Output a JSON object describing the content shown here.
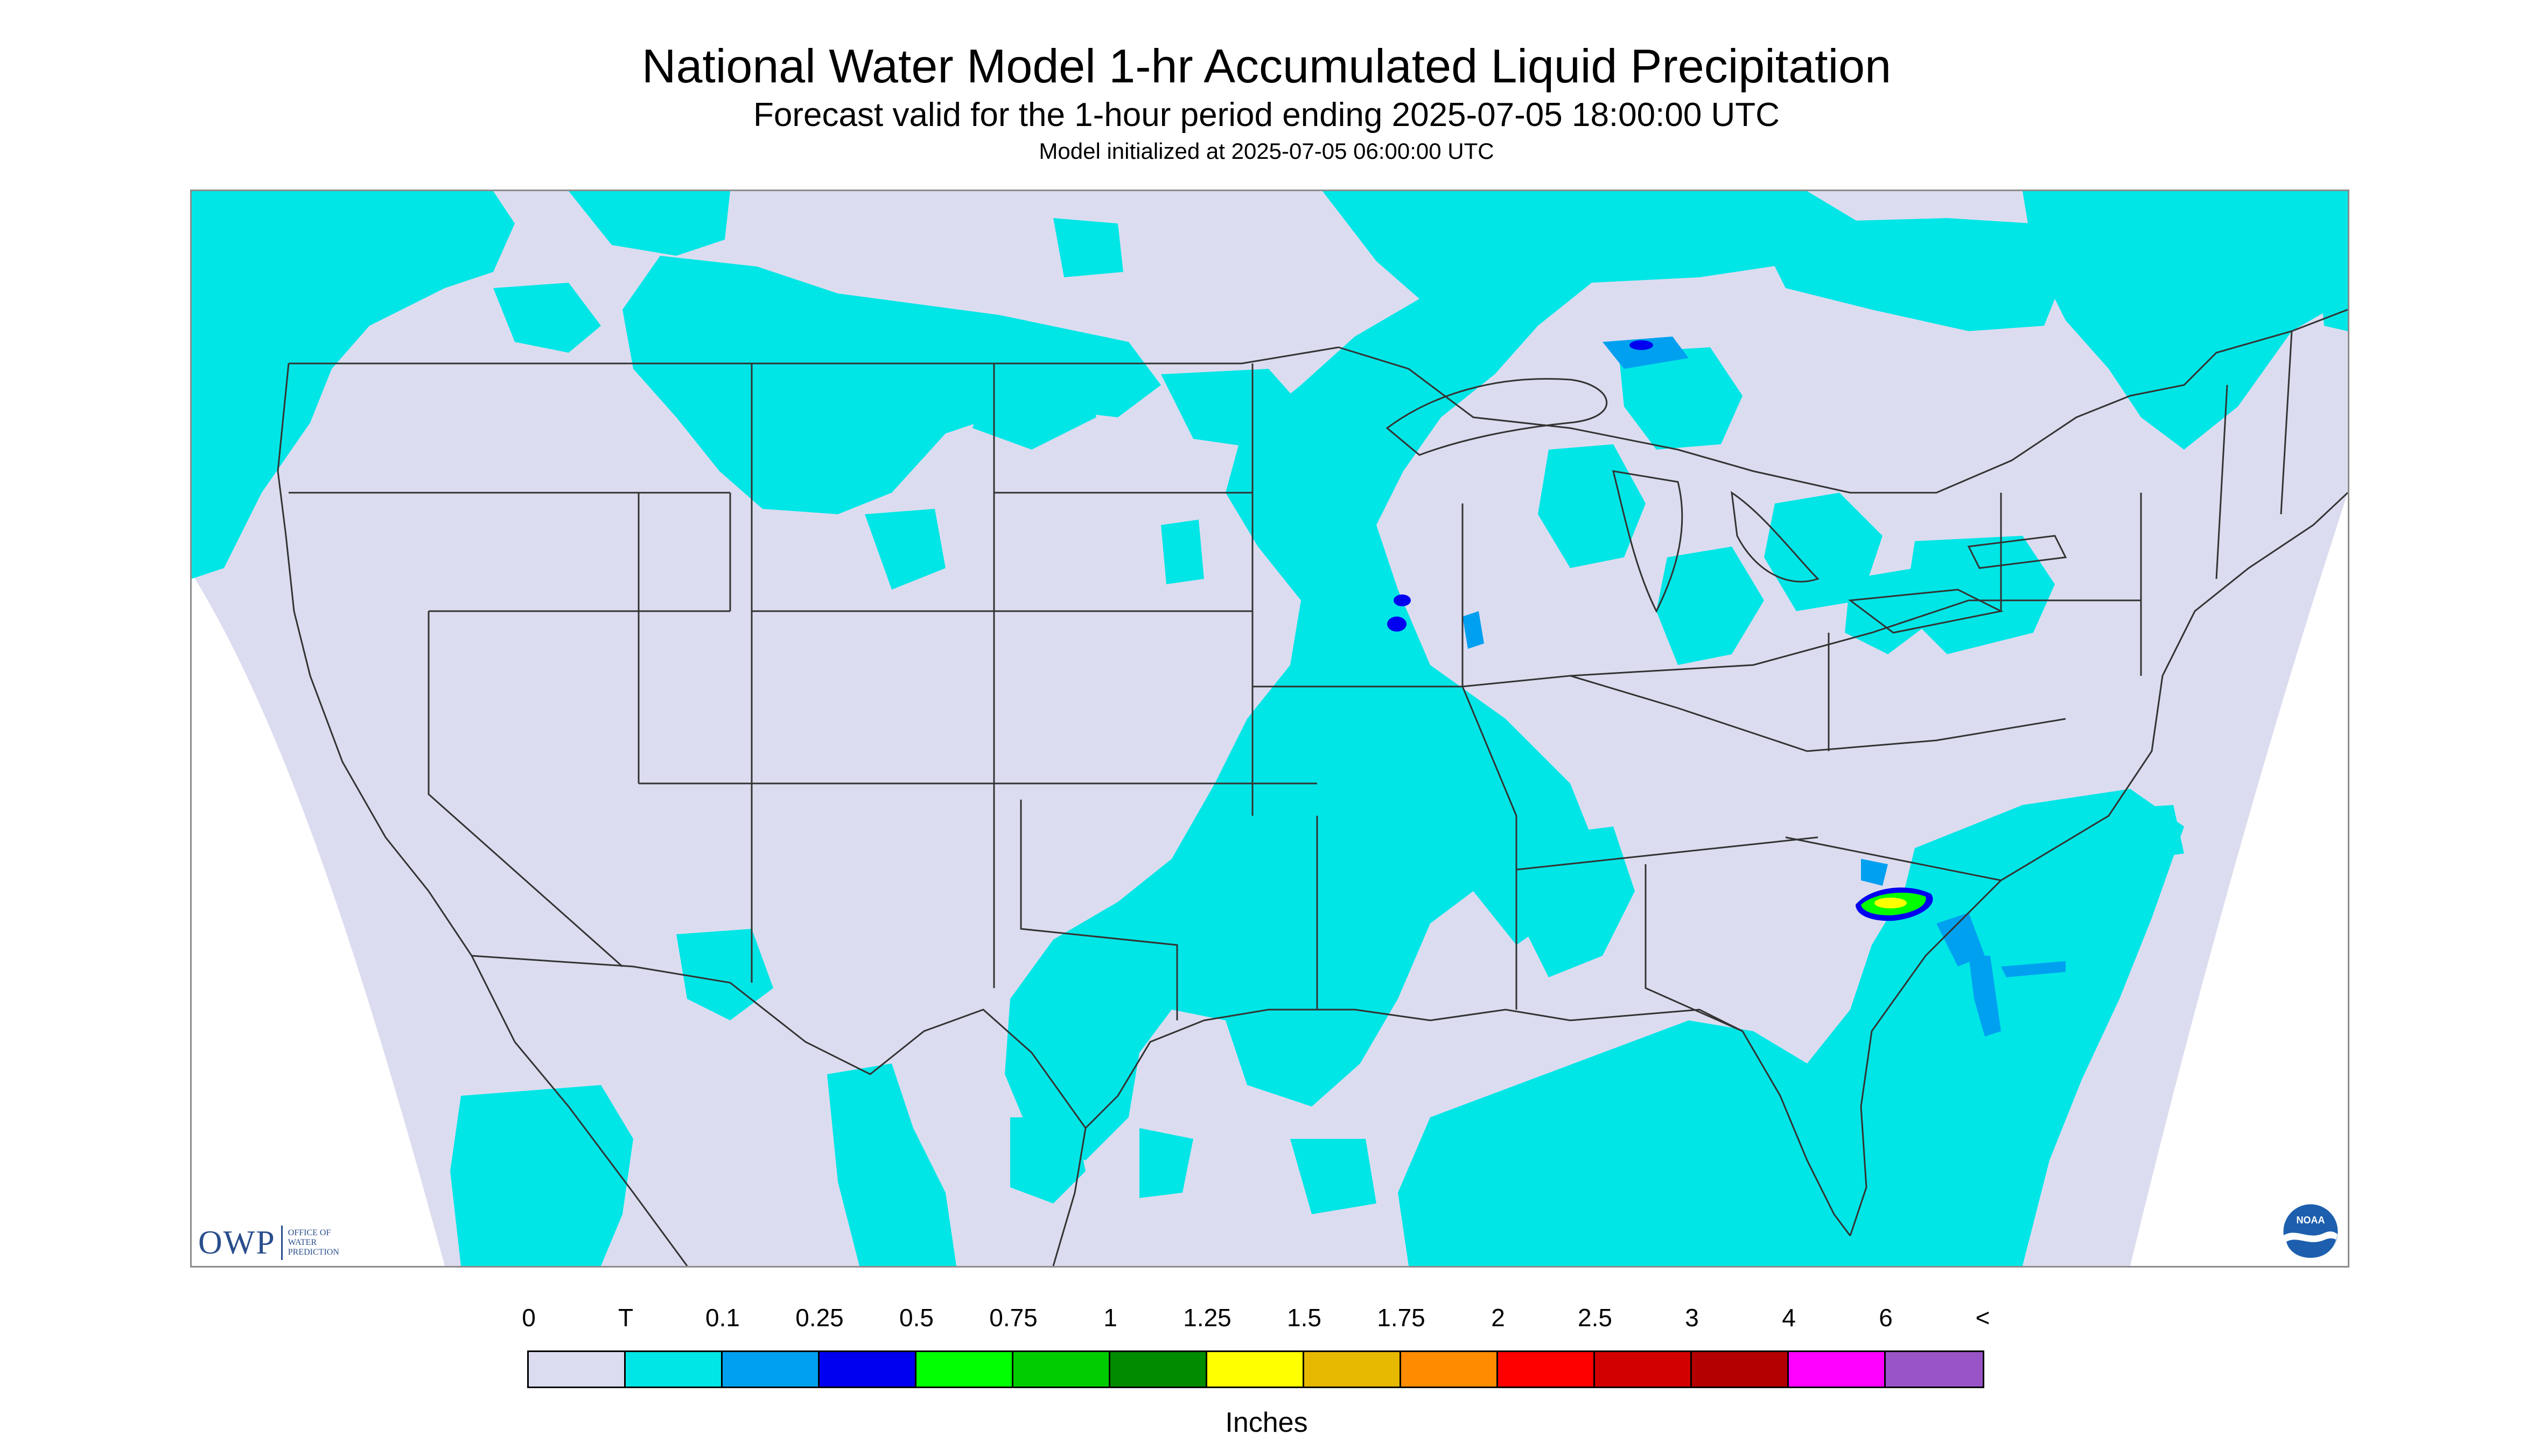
{
  "title": "National Water Model 1-hr Accumulated Liquid Precipitation",
  "subtitle": "Forecast valid for the 1-hour period ending 2025-07-05 18:00:00 UTC",
  "init_line": "Model initialized at 2025-07-05 06:00:00 UTC",
  "logos": {
    "owp_letters": "OWP",
    "owp_sub": [
      "OFFICE OF",
      "WATER",
      "PREDICTION"
    ],
    "noaa": "NOAA"
  },
  "legend": {
    "labels": [
      "0",
      "T",
      "0.1",
      "0.25",
      "0.5",
      "0.75",
      "1",
      "1.25",
      "1.5",
      "1.75",
      "2",
      "2.5",
      "3",
      "4",
      "6",
      "<"
    ],
    "colors": [
      "#dcdcf0",
      "#00e6e6",
      "#00a0f0",
      "#0000f0",
      "#00ff00",
      "#00cd00",
      "#008b00",
      "#ffff00",
      "#e6b800",
      "#ff8c00",
      "#ff0000",
      "#d20000",
      "#b40000",
      "#ff00ff",
      "#9955c8"
    ],
    "units": "Inches"
  },
  "colors": {
    "no_precip": "#dcdcf0",
    "trace": "#00e6e6",
    "light": "#00a0f0",
    "moderate": "#0000f0",
    "heavy_green": "#00ff00",
    "heavy_yellow": "#ffff00",
    "boundary_line": "#333333"
  }
}
